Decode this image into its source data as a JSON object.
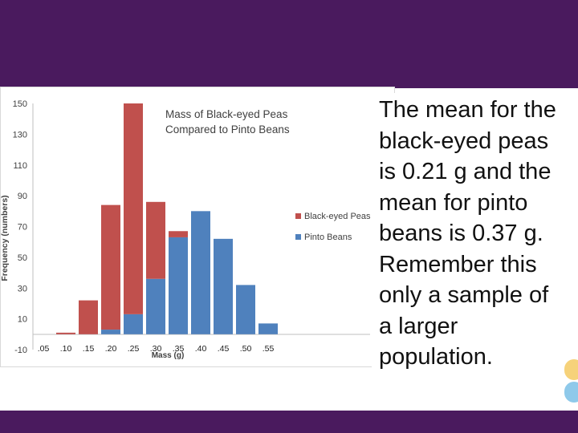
{
  "slide": {
    "body_text": "The mean for the black-eyed peas is 0.21 g and the mean for pinto beans is 0.37 g. Remember this only a sample of a larger population.",
    "colors": {
      "band": "#4a1a5e",
      "deco_yellow": "#f6d27a",
      "deco_blue": "#8ec9ea"
    }
  },
  "chart_data": {
    "type": "bar",
    "title_lines": [
      "Mass of Black-eyed Peas",
      "Compared to Pinto Beans"
    ],
    "xlabel": "Mass (g)",
    "ylabel": "Frequency (numbers)",
    "categories": [
      ".05",
      ".10",
      ".15",
      ".20",
      ".25",
      ".30",
      ".35",
      ".40",
      ".45",
      ".50",
      ".55"
    ],
    "series": [
      {
        "name": "Black-eyed Peas",
        "color": "#c0504d",
        "values": [
          0,
          1,
          22,
          81,
          137,
          50,
          4,
          0,
          0,
          0,
          0
        ]
      },
      {
        "name": "Pinto Beans",
        "color": "#4f81bd",
        "values": [
          0,
          0,
          0,
          3,
          13,
          36,
          63,
          80,
          62,
          32,
          7
        ]
      }
    ],
    "ylim": [
      -10,
      150
    ],
    "yticks": [
      "150",
      "130",
      "110",
      "90",
      "70",
      "50",
      "30",
      "10",
      "-10"
    ],
    "legend": "right",
    "grid": false
  }
}
